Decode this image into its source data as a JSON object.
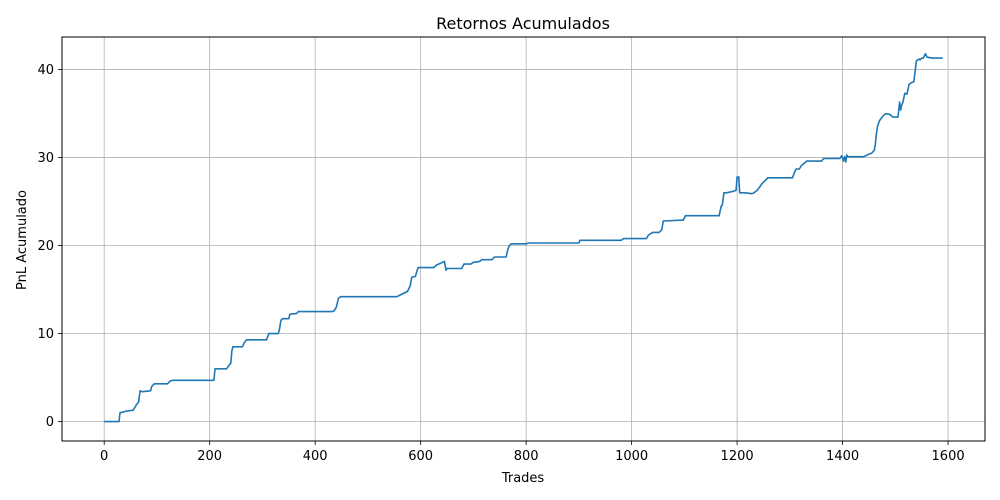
{
  "chart_data": {
    "type": "line",
    "title": "Retornos Acumulados",
    "xlabel": "Trades",
    "ylabel": "PnL Acumulado",
    "xlim": [
      -80,
      1670
    ],
    "ylim": [
      -2.2,
      43.7
    ],
    "xticks": [
      0,
      200,
      400,
      600,
      800,
      1000,
      1200,
      1400,
      1600
    ],
    "yticks": [
      0,
      10,
      20,
      30,
      40
    ],
    "grid": true,
    "legend": "none",
    "series": [
      {
        "color": "#1f77b4",
        "x": [
          0,
          28,
          30,
          42,
          55,
          62,
          65,
          68,
          72,
          88,
          90,
          95,
          120,
          125,
          130,
          208,
          210,
          232,
          238,
          240,
          242,
          244,
          262,
          266,
          270,
          308,
          312,
          330,
          332,
          335,
          338,
          350,
          352,
          365,
          368,
          380,
          432,
          436,
          440,
          444,
          448,
          555,
          565,
          575,
          580,
          583,
          590,
          595,
          625,
          630,
          638,
          645,
          648,
          650,
          678,
          682,
          695,
          700,
          712,
          716,
          735,
          740,
          762,
          765,
          768,
          772,
          800,
          805,
          900,
          902,
          980,
          985,
          1028,
          1032,
          1040,
          1052,
          1057,
          1060,
          1098,
          1102,
          1166,
          1168,
          1170,
          1172,
          1175,
          1180,
          1195,
          1198,
          1200,
          1203,
          1205,
          1215,
          1228,
          1232,
          1238,
          1242,
          1248,
          1252,
          1258,
          1305,
          1308,
          1312,
          1318,
          1322,
          1328,
          1332,
          1360,
          1364,
          1395,
          1398,
          1400,
          1402,
          1404,
          1406,
          1408,
          1410,
          1440,
          1450,
          1455,
          1460,
          1462,
          1464,
          1466,
          1470,
          1475,
          1478,
          1482,
          1490,
          1495,
          1505,
          1508,
          1510,
          1512,
          1514,
          1518,
          1522,
          1526,
          1530,
          1535,
          1540,
          1545,
          1547,
          1550,
          1553,
          1557,
          1560,
          1570,
          1590
        ],
        "y": [
          0,
          0,
          1.0,
          1.2,
          1.3,
          2.0,
          2.2,
          3.5,
          3.4,
          3.5,
          4.0,
          4.3,
          4.3,
          4.6,
          4.7,
          4.7,
          6.0,
          6.0,
          6.5,
          6.6,
          8.0,
          8.5,
          8.5,
          9.0,
          9.3,
          9.3,
          10.0,
          10.0,
          10.4,
          11.5,
          11.7,
          11.7,
          12.2,
          12.3,
          12.5,
          12.5,
          12.5,
          12.6,
          13.0,
          14.0,
          14.2,
          14.2,
          14.5,
          14.8,
          15.4,
          16.4,
          16.5,
          17.5,
          17.5,
          17.8,
          18.0,
          18.2,
          17.2,
          17.4,
          17.4,
          17.9,
          17.9,
          18.1,
          18.2,
          18.4,
          18.4,
          18.7,
          18.7,
          19.5,
          20.0,
          20.2,
          20.2,
          20.3,
          20.3,
          20.6,
          20.6,
          20.8,
          20.8,
          21.2,
          21.5,
          21.5,
          21.8,
          22.8,
          22.9,
          23.4,
          23.4,
          24.0,
          24.5,
          24.6,
          26.0,
          26.0,
          26.2,
          26.3,
          27.8,
          27.8,
          26.0,
          26.0,
          25.9,
          26.0,
          26.3,
          26.6,
          27.1,
          27.3,
          27.7,
          27.7,
          28.2,
          28.7,
          28.7,
          29.1,
          29.4,
          29.6,
          29.6,
          29.9,
          29.9,
          30.2,
          30.0,
          29.6,
          30.1,
          29.5,
          30.3,
          30.1,
          30.1,
          30.4,
          30.5,
          30.8,
          31.5,
          32.6,
          33.5,
          34.2,
          34.6,
          34.8,
          35.0,
          34.9,
          34.6,
          34.6,
          36.3,
          35.4,
          36.0,
          36.2,
          37.3,
          37.2,
          38.3,
          38.5,
          38.6,
          41.0,
          41.2,
          41.1,
          41.3,
          41.3,
          41.8,
          41.4,
          41.3,
          41.3
        ]
      }
    ]
  }
}
